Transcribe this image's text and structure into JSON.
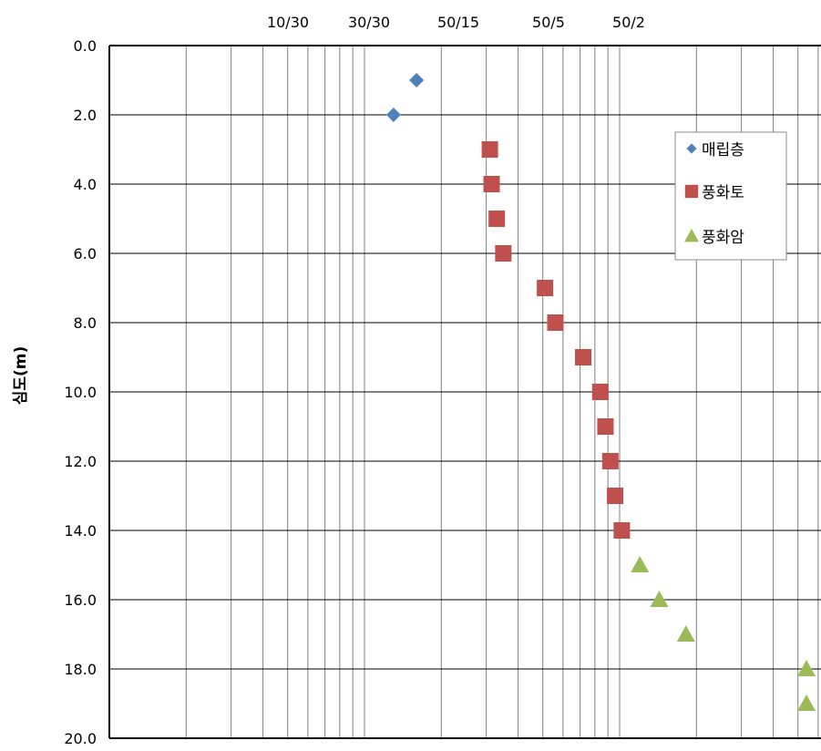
{
  "chart_data": {
    "type": "scatter",
    "ylabel": "심도(m)",
    "y_axis": {
      "range": [
        0,
        20
      ],
      "reversed": true,
      "ticks": [
        "0.0",
        "2.0",
        "4.0",
        "6.0",
        "8.0",
        "10.0",
        "12.0",
        "14.0",
        "16.0",
        "18.0",
        "20.0"
      ]
    },
    "x_axis": {
      "scale": "log",
      "position": "top",
      "ticks": [
        "10/30",
        "30/30",
        "50/15",
        "50/5",
        "50/2"
      ]
    },
    "grid": true,
    "legend": "right",
    "series": [
      {
        "name": "매립층",
        "marker": "diamond",
        "color": "#4f81bd",
        "x": [
          16,
          13
        ],
        "y": [
          1,
          2
        ]
      },
      {
        "name": "풍화토",
        "marker": "square",
        "color": "#c0504d",
        "x": [
          31,
          31.5,
          33,
          35,
          51,
          56,
          72,
          84,
          88,
          92,
          96,
          102
        ],
        "y": [
          3,
          4,
          5,
          6,
          7,
          8,
          9,
          10,
          11,
          12,
          13,
          14
        ]
      },
      {
        "name": "풍화암",
        "marker": "triangle",
        "color": "#9bbb59",
        "x": [
          120,
          143,
          182,
          540,
          540
        ],
        "y": [
          15,
          16,
          17,
          18,
          19
        ]
      }
    ]
  }
}
